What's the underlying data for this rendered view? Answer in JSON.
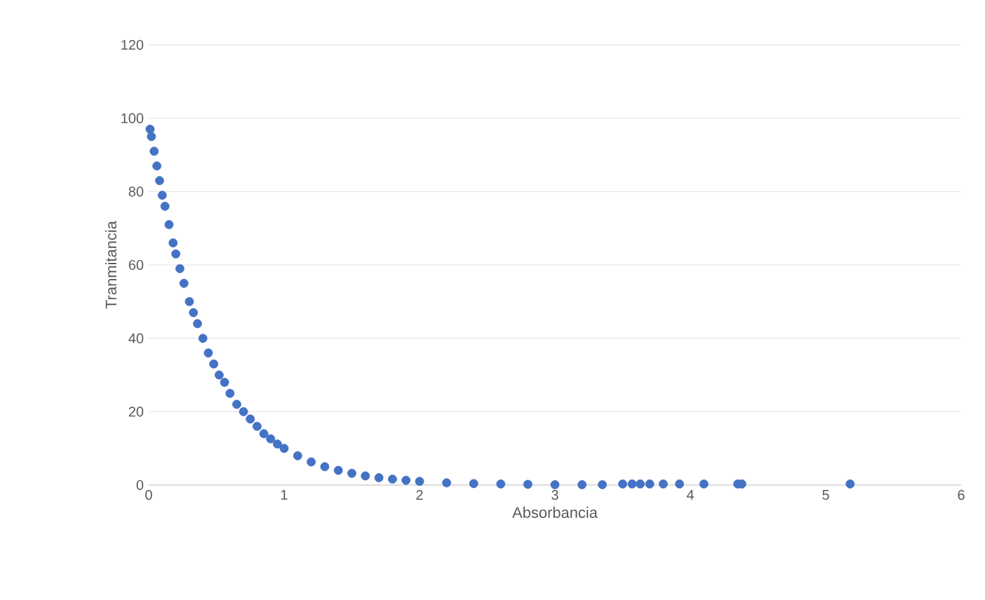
{
  "chart_data": {
    "type": "scatter",
    "xlabel": "Absorbancia",
    "ylabel": "Tranmitancia",
    "x": [
      0.01,
      0.02,
      0.04,
      0.06,
      0.08,
      0.1,
      0.12,
      0.15,
      0.18,
      0.2,
      0.23,
      0.26,
      0.3,
      0.33,
      0.36,
      0.4,
      0.44,
      0.48,
      0.52,
      0.56,
      0.6,
      0.65,
      0.7,
      0.75,
      0.8,
      0.85,
      0.9,
      0.95,
      1.0,
      1.1,
      1.2,
      1.3,
      1.4,
      1.5,
      1.6,
      1.7,
      1.8,
      1.9,
      2.0,
      2.2,
      2.4,
      2.6,
      2.8,
      3.0,
      3.2,
      3.35,
      3.5,
      3.57,
      3.63,
      3.7,
      3.8,
      3.92,
      4.1,
      4.35,
      4.38,
      5.18
    ],
    "series": [
      {
        "color": "#4472c4",
        "values": [
          97,
          95,
          91,
          87,
          83,
          79,
          76,
          71,
          66,
          63,
          59,
          55,
          50,
          47,
          44,
          40,
          36,
          33,
          30,
          28,
          25,
          22,
          20,
          18,
          16,
          14,
          12.6,
          11.2,
          10,
          8,
          6.3,
          5,
          4,
          3.2,
          2.5,
          2,
          1.6,
          1.3,
          1,
          0.6,
          0.4,
          0.3,
          0.2,
          0.1,
          0.1,
          0.1,
          0.3,
          0.3,
          0.3,
          0.3,
          0.3,
          0.3,
          0.3,
          0.3,
          0.3,
          0.3
        ]
      }
    ],
    "xlim": [
      0,
      6
    ],
    "ylim": [
      0,
      120
    ],
    "xticks": [
      0,
      1,
      2,
      3,
      4,
      5,
      6
    ],
    "yticks": [
      0,
      20,
      40,
      60,
      80,
      100,
      120
    ],
    "grid": "y",
    "marker": "circle"
  }
}
